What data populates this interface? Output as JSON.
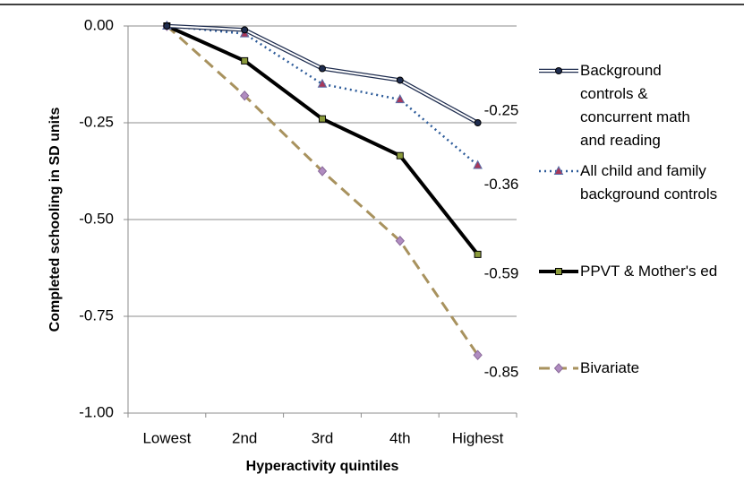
{
  "chart_data": {
    "type": "line",
    "x_label": "Hyperactivity quintiles",
    "y_label": "Completed schooling in SD units",
    "categories": [
      "Lowest",
      "2nd",
      "3rd",
      "4th",
      "Highest"
    ],
    "ylim": [
      -1.0,
      0.0
    ],
    "yticks": [
      {
        "value": 0,
        "label": "0.00"
      },
      {
        "value": -0.25,
        "label": "-0.25"
      },
      {
        "value": -0.5,
        "label": "-0.50"
      },
      {
        "value": -0.75,
        "label": "-0.75"
      },
      {
        "value": -1.0,
        "label": "-1.00"
      }
    ],
    "grid": true,
    "legend": "right",
    "series": [
      {
        "name": "Background controls & concurrent math and reading",
        "color": "#1f2d4f",
        "values": [
          0,
          -0.01,
          -0.11,
          -0.14,
          -0.25
        ]
      },
      {
        "name": "All child and family background controls",
        "color": "#2e5c9a",
        "values": [
          0,
          -0.02,
          -0.15,
          -0.19,
          -0.36
        ]
      },
      {
        "name": "PPVT & Mother's ed",
        "color": "#000000",
        "values": [
          0,
          -0.09,
          -0.24,
          -0.335,
          -0.59
        ]
      },
      {
        "name": "Bivariate",
        "color": "#a8925e",
        "values": [
          0,
          -0.18,
          -0.375,
          -0.555,
          -0.85
        ]
      }
    ]
  }
}
